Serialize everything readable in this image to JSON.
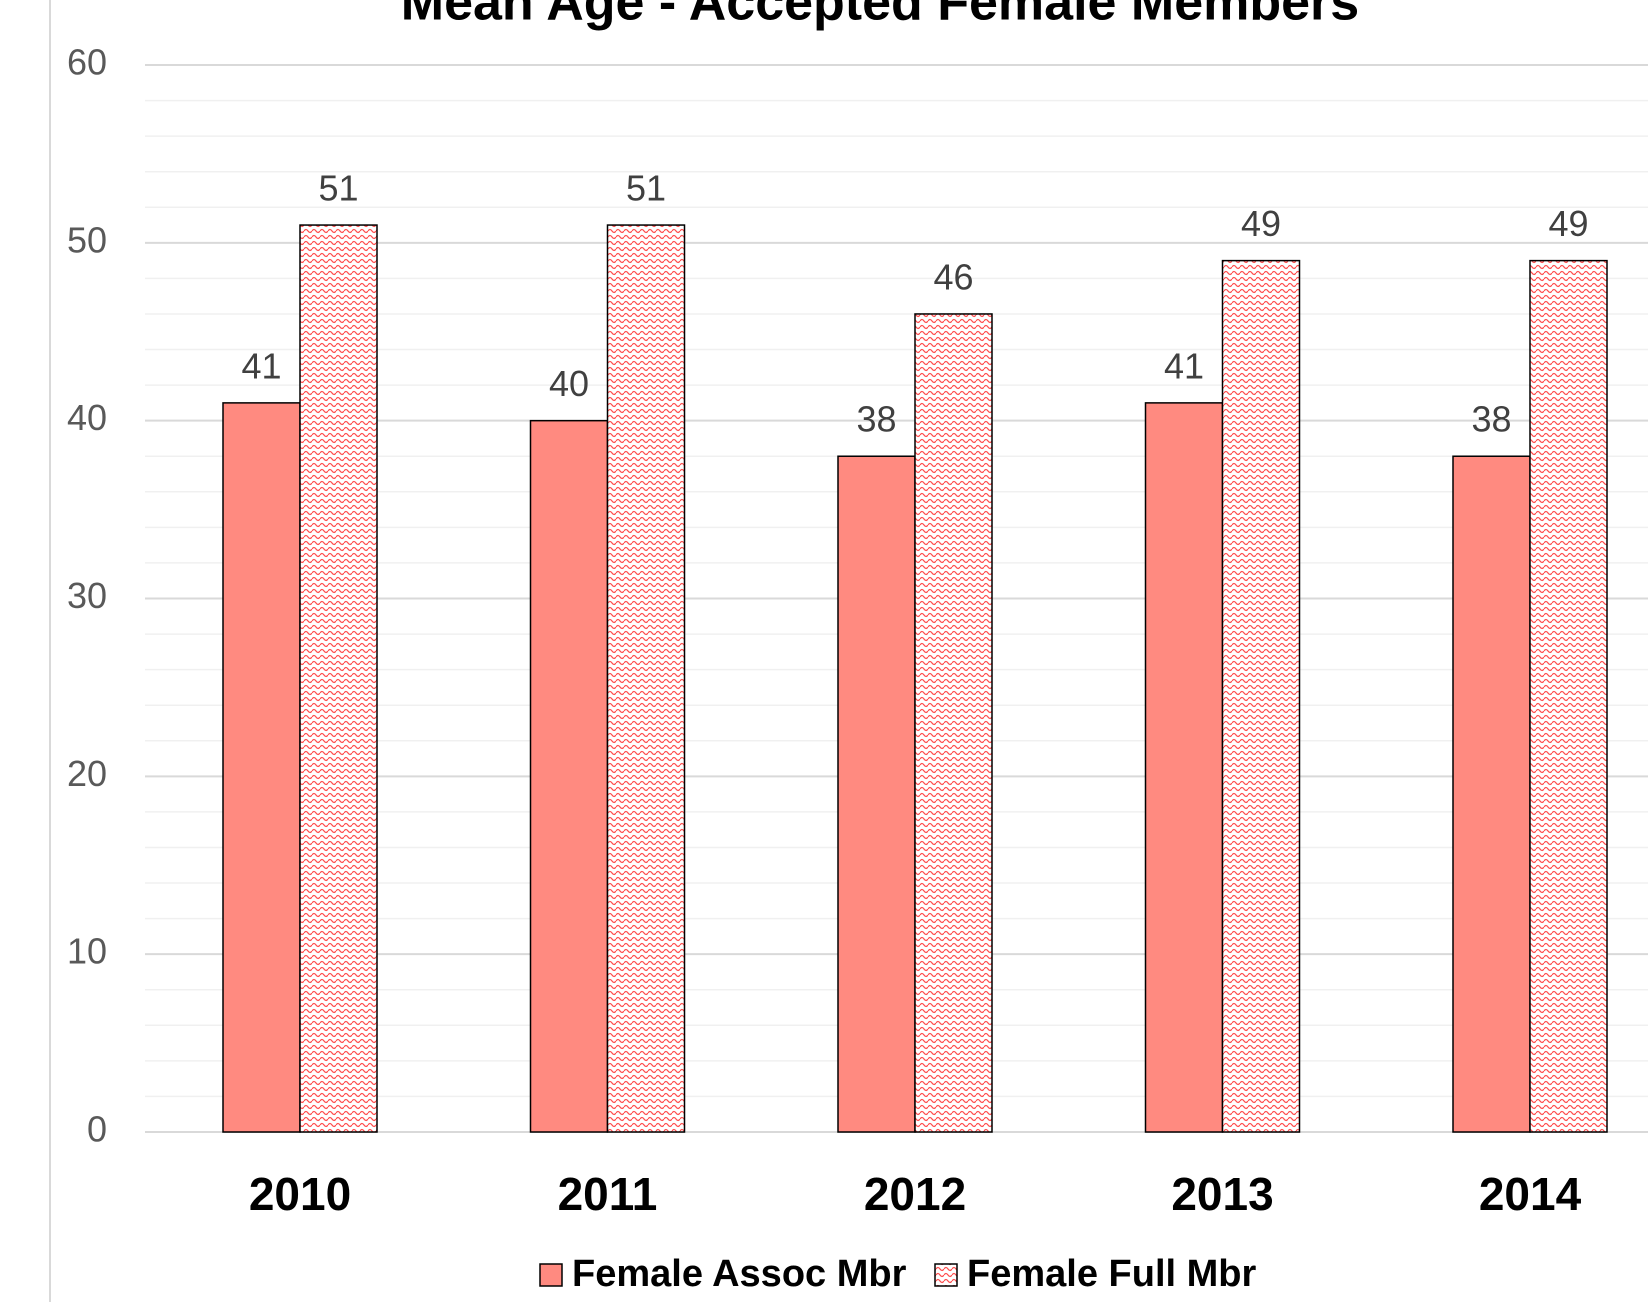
{
  "chart_data": {
    "type": "bar",
    "title": "Mean Age - Accepted Female Members",
    "categories": [
      "2010",
      "2011",
      "2012",
      "2013",
      "2014"
    ],
    "series": [
      {
        "name": "Female Assoc Mbr",
        "color": "#ff8a80",
        "values": [
          41,
          40,
          38,
          41,
          38
        ]
      },
      {
        "name": "Female Full Mbr",
        "color": "#ff4d4d",
        "pattern": "wave",
        "values": [
          51,
          51,
          46,
          49,
          49
        ]
      }
    ],
    "ylim": [
      0,
      60
    ],
    "yticks": [
      0,
      10,
      20,
      30,
      40,
      50,
      60
    ],
    "minor_yticks": [
      2,
      4,
      6,
      8,
      12,
      14,
      16,
      18,
      22,
      24,
      26,
      28,
      32,
      34,
      36,
      38,
      42,
      44,
      46,
      48,
      52,
      54,
      56,
      58
    ],
    "grid": true,
    "legend": "bottom"
  }
}
